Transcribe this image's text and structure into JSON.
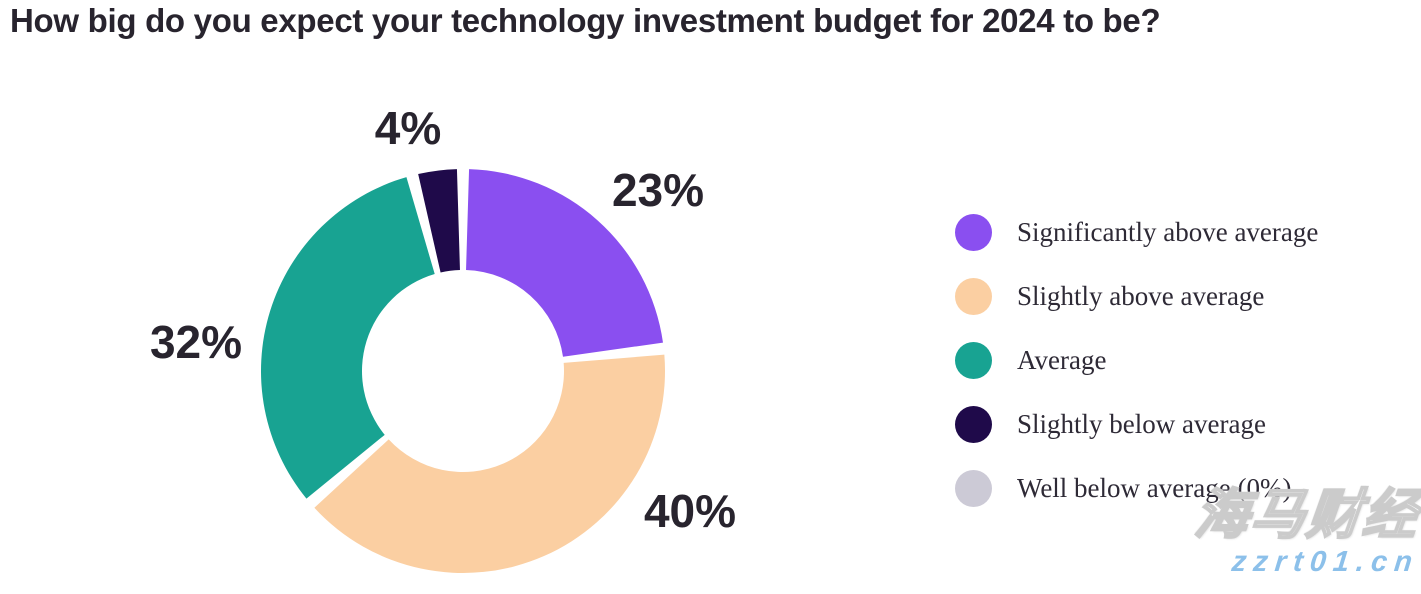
{
  "page": {
    "title": "How big do you expect your technology investment budget for 2024 to be?",
    "background": "#ffffff",
    "text_color": "#28242e"
  },
  "chart_data": {
    "type": "pie",
    "donut": true,
    "title": "How big do you expect your technology investment budget for 2024 to be?",
    "legend_position": "right",
    "start_angle_deg": 0,
    "direction": "clockwise",
    "inner_radius_ratio": 0.5,
    "slices": [
      {
        "label": "Significantly above average",
        "value": 23,
        "display": "23%",
        "color": "#8a4ff0"
      },
      {
        "label": "Slightly above average",
        "value": 40,
        "display": "40%",
        "color": "#fbcfa2"
      },
      {
        "label": "Average",
        "value": 32,
        "display": "32%",
        "color": "#18a392"
      },
      {
        "label": "Slightly below average",
        "value": 4,
        "display": "4%",
        "color": "#1f0a4a"
      },
      {
        "label": "Well below average (0%)",
        "value": 0,
        "display": "",
        "color": "#cccad6"
      }
    ]
  },
  "watermark": {
    "line1": "海马财经",
    "line2": "zzrt01.cn",
    "line2_color": "#8cc0ea"
  }
}
